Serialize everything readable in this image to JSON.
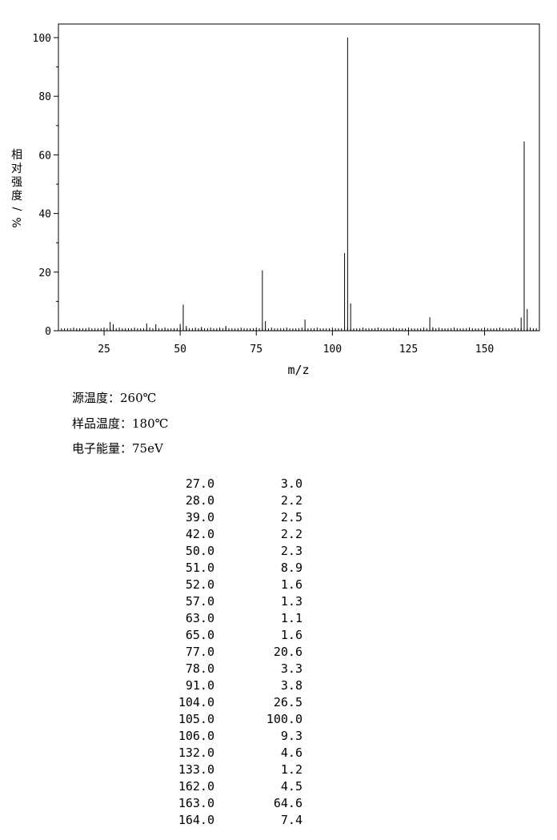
{
  "chart_data": {
    "type": "bar",
    "title": "",
    "xlabel": "m/z",
    "ylabel": "相对强度/%",
    "xlim": [
      10,
      168
    ],
    "ylim": [
      0,
      100
    ],
    "xticks": [
      25,
      50,
      75,
      100,
      125,
      150
    ],
    "yticks": [
      0,
      20,
      40,
      60,
      80,
      100
    ],
    "grid": false,
    "peaks": [
      {
        "mz": 27.0,
        "intensity": 3.0
      },
      {
        "mz": 28.0,
        "intensity": 2.2
      },
      {
        "mz": 39.0,
        "intensity": 2.5
      },
      {
        "mz": 42.0,
        "intensity": 2.2
      },
      {
        "mz": 50.0,
        "intensity": 2.3
      },
      {
        "mz": 51.0,
        "intensity": 8.9
      },
      {
        "mz": 52.0,
        "intensity": 1.6
      },
      {
        "mz": 57.0,
        "intensity": 1.3
      },
      {
        "mz": 63.0,
        "intensity": 1.1
      },
      {
        "mz": 65.0,
        "intensity": 1.6
      },
      {
        "mz": 77.0,
        "intensity": 20.6
      },
      {
        "mz": 78.0,
        "intensity": 3.3
      },
      {
        "mz": 91.0,
        "intensity": 3.8
      },
      {
        "mz": 104.0,
        "intensity": 26.5
      },
      {
        "mz": 105.0,
        "intensity": 100.0
      },
      {
        "mz": 106.0,
        "intensity": 9.3
      },
      {
        "mz": 132.0,
        "intensity": 4.6
      },
      {
        "mz": 133.0,
        "intensity": 1.2
      },
      {
        "mz": 162.0,
        "intensity": 4.5
      },
      {
        "mz": 163.0,
        "intensity": 64.6
      },
      {
        "mz": 164.0,
        "intensity": 7.4
      }
    ]
  },
  "conditions": {
    "source_temp": "源温度：260℃",
    "sample_temp": "样品温度：180℃",
    "electron_energy": "电子能量：75eV"
  },
  "table": [
    [
      "27.0",
      "3.0"
    ],
    [
      "28.0",
      "2.2"
    ],
    [
      "39.0",
      "2.5"
    ],
    [
      "42.0",
      "2.2"
    ],
    [
      "50.0",
      "2.3"
    ],
    [
      "51.0",
      "8.9"
    ],
    [
      "52.0",
      "1.6"
    ],
    [
      "57.0",
      "1.3"
    ],
    [
      "63.0",
      "1.1"
    ],
    [
      "65.0",
      "1.6"
    ],
    [
      "77.0",
      "20.6"
    ],
    [
      "78.0",
      "3.3"
    ],
    [
      "91.0",
      "3.8"
    ],
    [
      "104.0",
      "26.5"
    ],
    [
      "105.0",
      "100.0"
    ],
    [
      "106.0",
      "9.3"
    ],
    [
      "132.0",
      "4.6"
    ],
    [
      "133.0",
      "1.2"
    ],
    [
      "162.0",
      "4.5"
    ],
    [
      "163.0",
      "64.6"
    ],
    [
      "164.0",
      "7.4"
    ]
  ]
}
